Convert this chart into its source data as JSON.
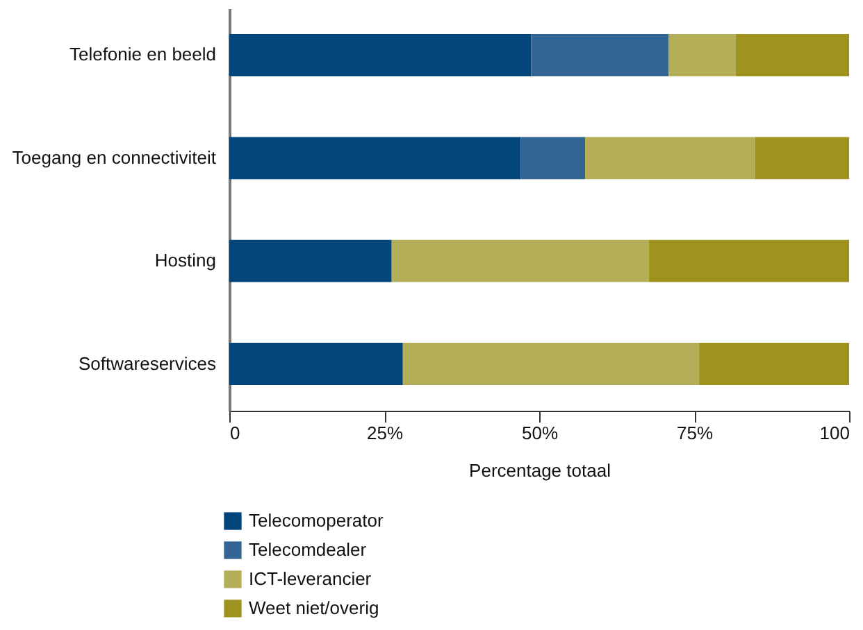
{
  "chart_data": {
    "type": "bar",
    "orientation": "horizontal",
    "stacked": true,
    "categories": [
      "Telefonie en beeld",
      "Toegang en connectiviteit",
      "Hosting",
      "Softwareservices"
    ],
    "series": [
      {
        "name": "Telecomoperator",
        "color": "#02457a",
        "values": [
          48.7,
          47.0,
          26.2,
          28.0
        ]
      },
      {
        "name": "Telecomdealer",
        "color": "#336594",
        "values": [
          22.2,
          10.4,
          0,
          0
        ]
      },
      {
        "name": "ICT-leverancier",
        "color": "#b5ae58",
        "values": [
          10.8,
          27.4,
          41.5,
          47.8
        ]
      },
      {
        "name": "Weet niet/overig",
        "color": "#9d931e",
        "values": [
          18.3,
          15.2,
          32.3,
          24.2
        ]
      }
    ],
    "xlim": [
      0,
      100
    ],
    "xticks": [
      0,
      {
        "value": 25,
        "label": "25%"
      },
      {
        "value": 50,
        "label": "50%"
      },
      {
        "value": 75,
        "label": "75%"
      },
      100
    ],
    "xlabel": "Percentage totaal",
    "grid": false,
    "legend": "bottom"
  }
}
